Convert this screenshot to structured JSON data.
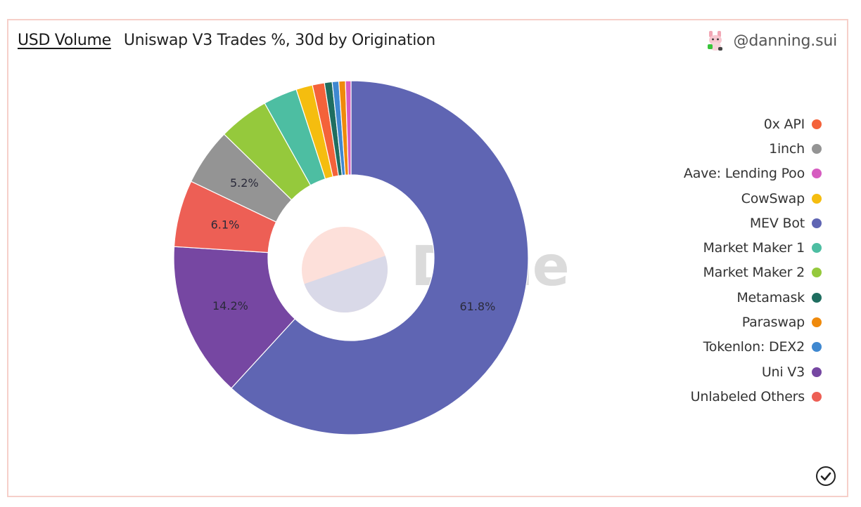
{
  "header": {
    "tab_label": "USD Volume",
    "title": "Uniswap V3 Trades %, 30d by Origination",
    "author": "@danning.sui",
    "avatar_icon": "bunny-avatar-icon"
  },
  "watermark": "Dune",
  "footer": {
    "status_icon": "check-circle-icon"
  },
  "chart_data": {
    "type": "pie",
    "subtype": "donut",
    "title": "Uniswap V3 Trades %, 30d by Origination",
    "metric": "USD Volume",
    "legend_position": "right",
    "categories": [
      "0x API",
      "1inch",
      "Aave: Lending Poo",
      "CowSwap",
      "MEV Bot",
      "Market Maker 1",
      "Market Maker 2",
      "Metamask",
      "Paraswap",
      "Tokenlon: DEX2",
      "Uni V3",
      "Unlabeled Others"
    ],
    "colors": [
      "#f4623a",
      "#949494",
      "#d65cc0",
      "#f5bd0f",
      "#5f65b3",
      "#4dbea2",
      "#95c93c",
      "#1f6e60",
      "#ef8a0c",
      "#3f88d0",
      "#7647a2",
      "#ed5f55"
    ],
    "values": [
      1.1,
      5.2,
      0.5,
      1.5,
      61.8,
      3.1,
      4.6,
      0.7,
      0.6,
      0.6,
      14.2,
      6.1
    ],
    "labels_shown": {
      "MEV Bot": "61.8%",
      "Uni V3": "14.2%",
      "Unlabeled Others": "6.1%",
      "1inch": "5.2%"
    },
    "draw_order_clockwise_from_top": [
      "MEV Bot",
      "Uni V3",
      "Unlabeled Others",
      "1inch",
      "Market Maker 2",
      "Market Maker 1",
      "CowSwap",
      "0x API",
      "Metamask",
      "Tokenlon: DEX2",
      "Paraswap",
      "Aave: Lending Poo"
    ]
  },
  "legend": {
    "items": [
      {
        "label": "0x API",
        "color": "#f4623a"
      },
      {
        "label": "1inch",
        "color": "#949494"
      },
      {
        "label": "Aave: Lending Poo",
        "color": "#d65cc0"
      },
      {
        "label": "CowSwap",
        "color": "#f5bd0f"
      },
      {
        "label": "MEV Bot",
        "color": "#5f65b3"
      },
      {
        "label": "Market Maker 1",
        "color": "#4dbea2"
      },
      {
        "label": "Market Maker 2",
        "color": "#95c93c"
      },
      {
        "label": "Metamask",
        "color": "#1f6e60"
      },
      {
        "label": "Paraswap",
        "color": "#ef8a0c"
      },
      {
        "label": "Tokenlon: DEX2",
        "color": "#3f88d0"
      },
      {
        "label": "Uni V3",
        "color": "#7647a2"
      },
      {
        "label": "Unlabeled Others",
        "color": "#ed5f55"
      }
    ]
  }
}
